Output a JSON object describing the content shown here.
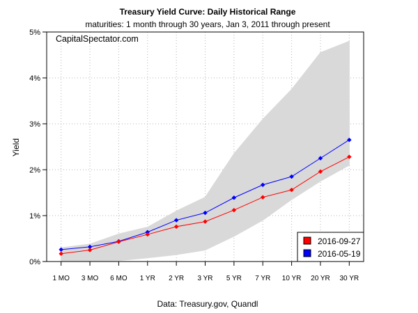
{
  "chart_data": {
    "type": "line",
    "title": "Treasury Yield Curve: Daily Historical Range",
    "subtitle": "maturities: 1 month through 30 years, Jan 3, 2011 through present",
    "watermark": "CapitalSpectator.com",
    "xlabel": "Data: Treasury.gov, Quandl",
    "ylabel": "Yield",
    "ylim": [
      0,
      5
    ],
    "y_ticks": [
      "0%",
      "1%",
      "2%",
      "3%",
      "4%",
      "5%"
    ],
    "categories": [
      "1 MO",
      "3 MO",
      "6 MO",
      "1 YR",
      "2 YR",
      "3 YR",
      "5 YR",
      "7 YR",
      "10 YR",
      "20 YR",
      "30 YR"
    ],
    "grid": true,
    "legend_position": "bottom-right",
    "historical_range": {
      "name": "Daily historical range",
      "color": "#d9d9d9",
      "low": [
        0.0,
        0.0,
        0.02,
        0.08,
        0.15,
        0.25,
        0.55,
        0.9,
        1.35,
        1.75,
        2.1
      ],
      "high": [
        0.3,
        0.38,
        0.6,
        0.75,
        1.1,
        1.4,
        2.35,
        3.1,
        3.75,
        4.55,
        4.8
      ]
    },
    "series": [
      {
        "name": "2016-09-27",
        "color": "#ff0000",
        "values": [
          0.17,
          0.25,
          0.43,
          0.59,
          0.76,
          0.87,
          1.12,
          1.4,
          1.56,
          1.96,
          2.28
        ]
      },
      {
        "name": "2016-05-19",
        "color": "#0000ff",
        "values": [
          0.26,
          0.32,
          0.44,
          0.64,
          0.9,
          1.06,
          1.39,
          1.67,
          1.85,
          2.25,
          2.65
        ]
      }
    ]
  }
}
